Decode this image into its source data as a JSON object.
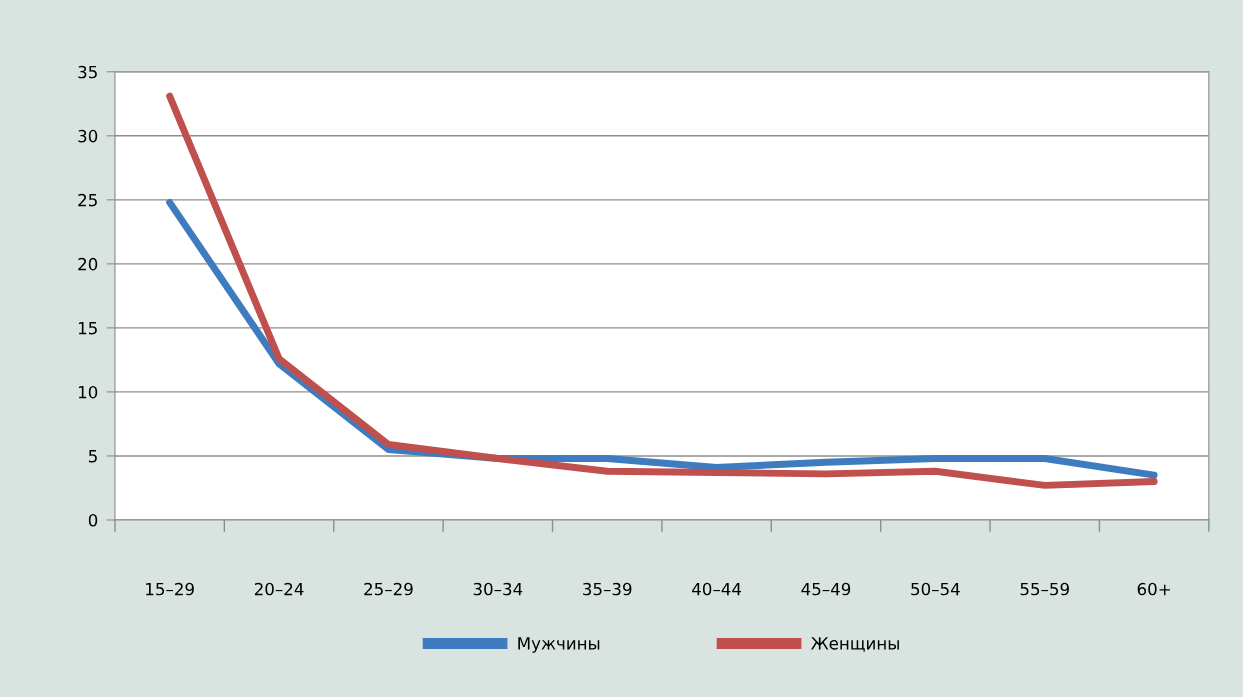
{
  "chart_data": {
    "type": "line",
    "categories": [
      "15–29",
      "20–24",
      "25–29",
      "30–34",
      "35–39",
      "40–44",
      "45–49",
      "50–54",
      "55–59",
      "60+"
    ],
    "series": [
      {
        "name": "Мужчины",
        "color": "#3f7cbf",
        "values": [
          24.8,
          12.2,
          5.5,
          4.8,
          4.8,
          4.1,
          4.5,
          4.8,
          4.8,
          3.5
        ]
      },
      {
        "name": "Женщины",
        "color": "#c0504d",
        "values": [
          33.1,
          12.6,
          5.9,
          4.8,
          3.8,
          3.7,
          3.6,
          3.8,
          2.7,
          3.0
        ]
      }
    ],
    "ylim": [
      0,
      35
    ],
    "yticks": [
      0,
      5,
      10,
      15,
      20,
      25,
      30,
      35
    ],
    "grid": "y",
    "legend": "bottom",
    "marker": "none",
    "line_style": "solid"
  }
}
